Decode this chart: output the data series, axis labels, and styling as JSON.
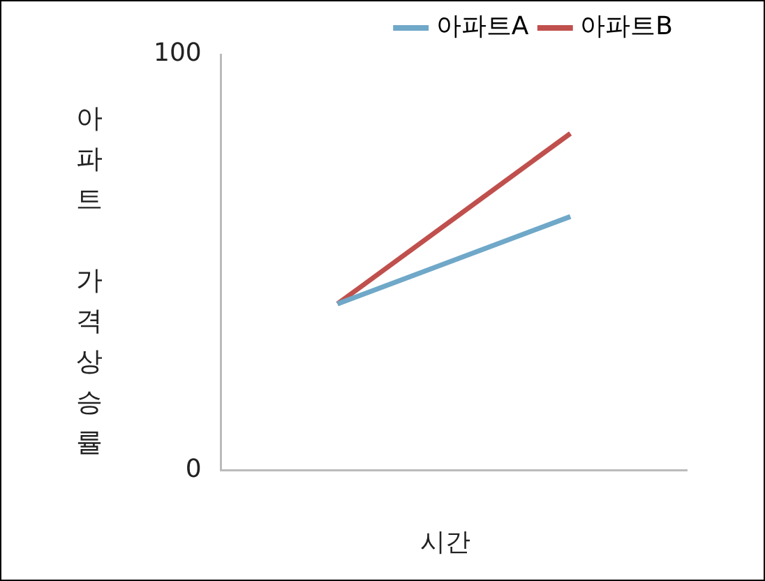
{
  "chart_data": {
    "type": "line",
    "xlabel": "시간",
    "ylabel": "아파트 가격상승률",
    "categories": [
      null,
      null
    ],
    "series": [
      {
        "name": "아파트A",
        "color": "#6fa8c8",
        "values": [
          40,
          61
        ]
      },
      {
        "name": "아파트B",
        "color": "#c0504d",
        "values": [
          40,
          81
        ]
      }
    ],
    "ylim": [
      0,
      100
    ],
    "yticks": [
      0,
      100
    ],
    "grid": false,
    "legend": "top right",
    "marker": "none",
    "line_style": "solid"
  }
}
